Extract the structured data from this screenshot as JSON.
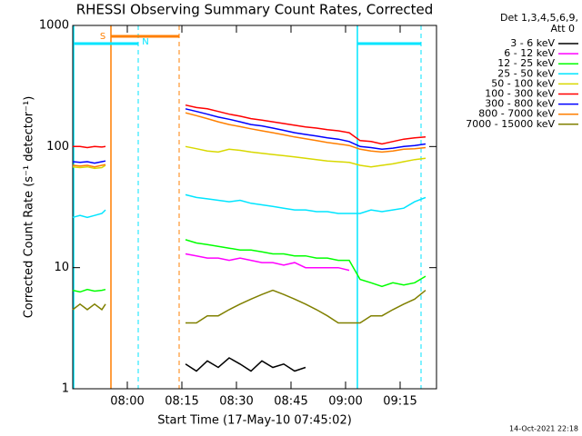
{
  "chart_data": {
    "type": "line",
    "title": "RHESSI Observing Summary Count Rates, Corrected",
    "y_label": "Corrected Count Rate (s⁻¹ detector⁻¹)",
    "x_label": "Start Time (17-May-10 07:45:02)",
    "footer": "14-Oct-2021 22:18",
    "legend_header": [
      "Det 1,3,4,5,6,9,",
      "Att 0"
    ],
    "legend_position": "right",
    "annotations": [
      "S",
      "N"
    ],
    "log_y": true,
    "xlim": [
      "07:45",
      "09:25"
    ],
    "xticks": [
      "08:00",
      "08:15",
      "08:30",
      "08:45",
      "09:00",
      "09:15"
    ],
    "ylim": [
      1,
      1000
    ],
    "yticks": [
      1,
      10,
      100,
      1000
    ],
    "x": [
      "07:45",
      "07:47",
      "07:49",
      "07:51",
      "07:53",
      "07:54",
      "08:05",
      "08:16",
      "08:19",
      "08:22",
      "08:25",
      "08:28",
      "08:31",
      "08:34",
      "08:37",
      "08:40",
      "08:43",
      "08:46",
      "08:49",
      "08:52",
      "08:55",
      "08:58",
      "09:01",
      "09:04",
      "09:07",
      "09:10",
      "09:13",
      "09:16",
      "09:19",
      "09:22"
    ],
    "series": [
      {
        "name": "3 - 6 keV",
        "color": "#000000",
        "values": [
          null,
          null,
          null,
          null,
          null,
          null,
          null,
          1.6,
          1.4,
          1.7,
          1.5,
          1.8,
          1.6,
          1.4,
          1.7,
          1.5,
          1.6,
          1.4,
          1.5,
          null,
          null,
          null,
          null,
          null,
          null,
          null,
          null,
          null,
          null,
          null
        ]
      },
      {
        "name": "6 - 12 keV",
        "color": "#ff00ff",
        "values": [
          null,
          null,
          null,
          null,
          null,
          null,
          null,
          13,
          12.5,
          12,
          12,
          11.5,
          12,
          11.5,
          11,
          11,
          10.5,
          11,
          10,
          10,
          10,
          10,
          9.5,
          null,
          null,
          null,
          null,
          null,
          null,
          null
        ]
      },
      {
        "name": "12 - 25 keV",
        "color": "#00ff00",
        "values": [
          6.5,
          6.3,
          6.6,
          6.4,
          6.5,
          6.6,
          null,
          17,
          16,
          15.5,
          15,
          14.5,
          14,
          14,
          13.5,
          13,
          13,
          12.5,
          12.5,
          12,
          12,
          11.5,
          11.5,
          8,
          7.5,
          7,
          7.5,
          7.2,
          7.5,
          8.5
        ]
      },
      {
        "name": "25 - 50 keV",
        "color": "#00e5ff",
        "values": [
          26,
          27,
          26,
          27,
          28,
          30,
          null,
          40,
          38,
          37,
          36,
          35,
          36,
          34,
          33,
          32,
          31,
          30,
          30,
          29,
          29,
          28,
          28,
          28,
          30,
          29,
          30,
          31,
          35,
          38
        ]
      },
      {
        "name": "50 - 100 keV",
        "color": "#d8d800",
        "values": [
          68,
          67,
          68,
          66,
          67,
          70,
          null,
          100,
          96,
          92,
          90,
          95,
          93,
          90,
          88,
          86,
          84,
          82,
          80,
          78,
          76,
          75,
          74,
          70,
          68,
          70,
          72,
          75,
          78,
          80
        ]
      },
      {
        "name": "100 - 300 keV",
        "color": "#ff0000",
        "values": [
          100,
          100,
          98,
          100,
          99,
          100,
          null,
          220,
          210,
          205,
          195,
          185,
          178,
          170,
          165,
          160,
          155,
          150,
          145,
          142,
          138,
          135,
          130,
          112,
          110,
          105,
          110,
          115,
          118,
          120
        ]
      },
      {
        "name": "300 - 800 keV",
        "color": "#0000ff",
        "values": [
          75,
          74,
          75,
          73,
          75,
          76,
          null,
          205,
          195,
          185,
          175,
          168,
          160,
          152,
          148,
          142,
          136,
          130,
          126,
          122,
          118,
          115,
          110,
          100,
          98,
          95,
          97,
          100,
          102,
          105
        ]
      },
      {
        "name": "800 - 7000 keV",
        "color": "#ff7f00",
        "values": [
          70,
          69,
          70,
          68,
          70,
          71,
          null,
          190,
          180,
          170,
          160,
          152,
          146,
          140,
          135,
          130,
          125,
          120,
          116,
          112,
          108,
          105,
          102,
          95,
          92,
          90,
          92,
          95,
          96,
          98
        ]
      },
      {
        "name": "7000 - 15000 keV",
        "color": "#808000",
        "values": [
          4.5,
          5,
          4.5,
          5,
          4.5,
          5,
          null,
          3.5,
          3.5,
          4,
          4,
          4.5,
          5,
          5.5,
          6,
          6.5,
          6,
          5.5,
          5,
          4.5,
          4,
          3.5,
          3.5,
          3.5,
          4,
          4,
          4.5,
          5,
          5.5,
          6.5
        ]
      }
    ]
  }
}
